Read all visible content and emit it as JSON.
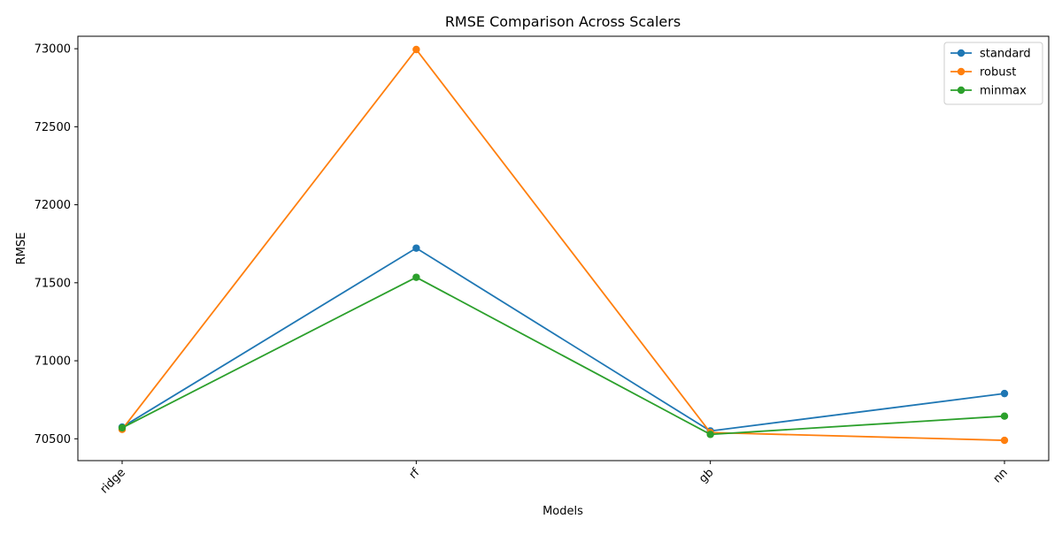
{
  "chart_data": {
    "type": "line",
    "title": "RMSE Comparison Across Scalers",
    "xlabel": "Models",
    "ylabel": "RMSE",
    "categories": [
      "ridge",
      "rf",
      "gb",
      "nn"
    ],
    "ylim": [
      70360,
      73080
    ],
    "yticks": [
      70500,
      71000,
      71500,
      72000,
      72500,
      73000
    ],
    "grid": false,
    "legend_position": "top-right",
    "series": [
      {
        "name": "standard",
        "color": "#1f77b4",
        "values": [
          70575,
          71722,
          70550,
          70790
        ]
      },
      {
        "name": "robust",
        "color": "#ff7f0e",
        "values": [
          70560,
          72995,
          70540,
          70490
        ]
      },
      {
        "name": "minmax",
        "color": "#2ca02c",
        "values": [
          70570,
          71535,
          70528,
          70645
        ]
      }
    ]
  }
}
